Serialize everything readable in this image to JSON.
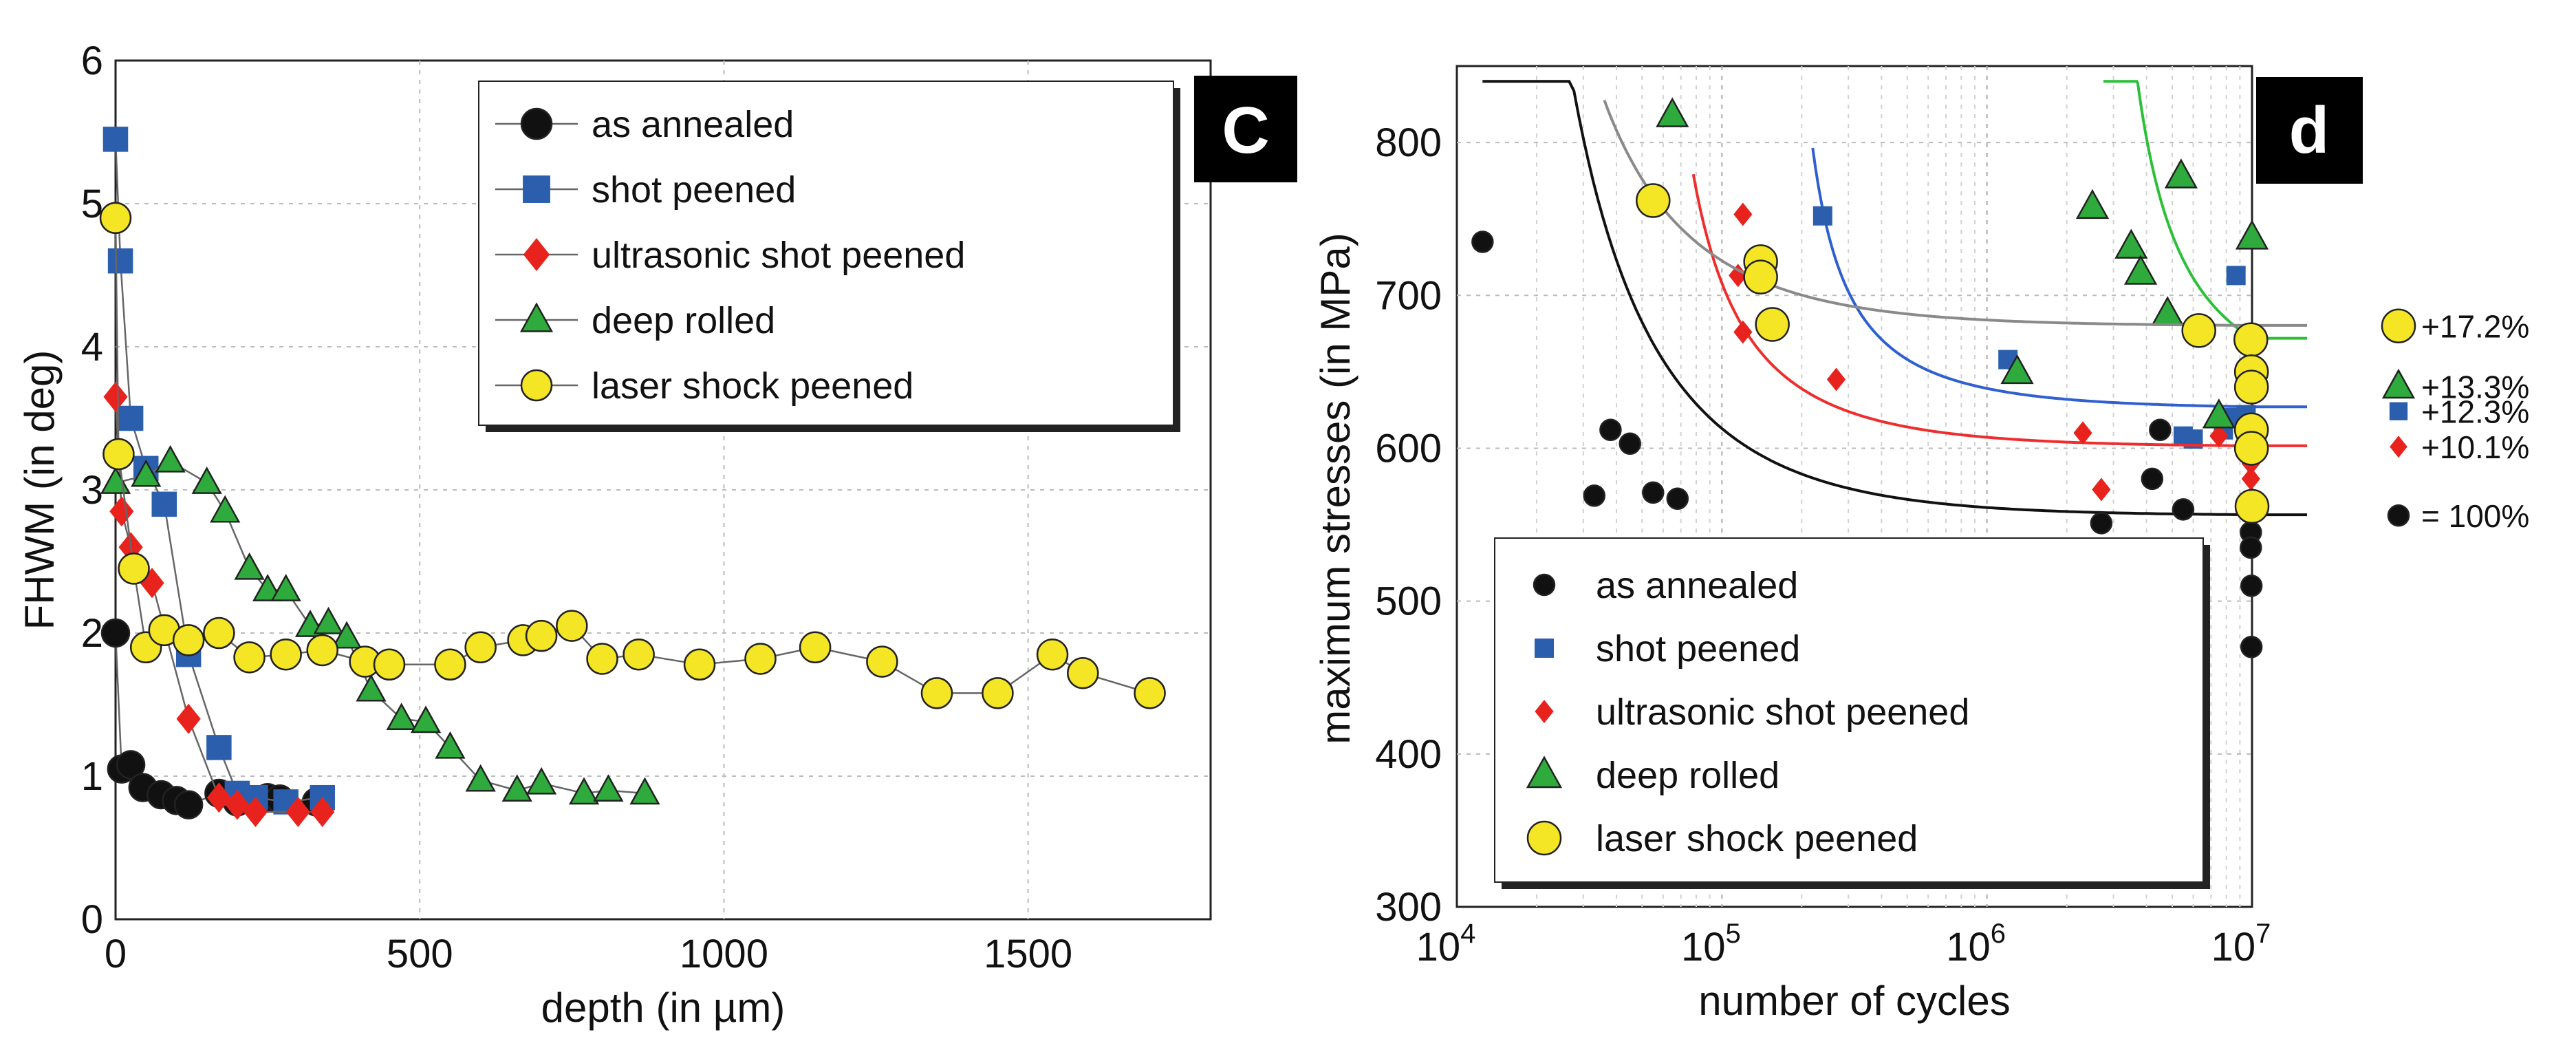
{
  "figure_title": "",
  "chart_data": [
    {
      "type": "line",
      "panel_label": "c",
      "title": "",
      "xlabel": "depth (in µm)",
      "ylabel": "FHWM (in deg)",
      "xlim": [
        0,
        1800
      ],
      "ylim": [
        0,
        6
      ],
      "xticks": [
        0,
        500,
        1000,
        1500
      ],
      "yticks": [
        0,
        1,
        2,
        3,
        4,
        5,
        6
      ],
      "grid": true,
      "legend_position": "top-right",
      "series": [
        {
          "name": "as annealed",
          "marker": "circle",
          "color": "#111111",
          "points": [
            [
              0,
              2.0
            ],
            [
              10,
              1.05
            ],
            [
              25,
              1.08
            ],
            [
              45,
              0.92
            ],
            [
              75,
              0.87
            ],
            [
              100,
              0.83
            ],
            [
              120,
              0.8
            ],
            [
              170,
              0.88
            ],
            [
              200,
              0.82
            ],
            [
              250,
              0.85
            ],
            [
              270,
              0.84
            ],
            [
              330,
              0.82
            ]
          ]
        },
        {
          "name": "shot peened",
          "marker": "square",
          "color": "#2b5fae",
          "points": [
            [
              0,
              5.45
            ],
            [
              8,
              4.6
            ],
            [
              25,
              3.5
            ],
            [
              50,
              3.15
            ],
            [
              80,
              2.9
            ],
            [
              120,
              1.85
            ],
            [
              170,
              1.2
            ],
            [
              200,
              0.88
            ],
            [
              230,
              0.85
            ],
            [
              280,
              0.82
            ],
            [
              340,
              0.85
            ]
          ]
        },
        {
          "name": "ultrasonic shot peened",
          "marker": "diamond",
          "color": "#e8231e",
          "points": [
            [
              0,
              3.65
            ],
            [
              10,
              2.85
            ],
            [
              25,
              2.6
            ],
            [
              60,
              2.35
            ],
            [
              120,
              1.4
            ],
            [
              170,
              0.85
            ],
            [
              200,
              0.8
            ],
            [
              230,
              0.75
            ],
            [
              300,
              0.75
            ],
            [
              340,
              0.75
            ]
          ]
        },
        {
          "name": "deep rolled",
          "marker": "triangle",
          "color": "#2eab3c",
          "points": [
            [
              0,
              3.05
            ],
            [
              50,
              3.1
            ],
            [
              90,
              3.2
            ],
            [
              150,
              3.05
            ],
            [
              180,
              2.85
            ],
            [
              220,
              2.45
            ],
            [
              250,
              2.3
            ],
            [
              280,
              2.3
            ],
            [
              320,
              2.05
            ],
            [
              350,
              2.07
            ],
            [
              380,
              1.97
            ],
            [
              420,
              1.6
            ],
            [
              470,
              1.4
            ],
            [
              510,
              1.38
            ],
            [
              550,
              1.2
            ],
            [
              600,
              0.97
            ],
            [
              660,
              0.9
            ],
            [
              700,
              0.95
            ],
            [
              770,
              0.88
            ],
            [
              810,
              0.9
            ],
            [
              870,
              0.88
            ]
          ]
        },
        {
          "name": "laser shock peened",
          "marker": "circle",
          "color": "#f4e525",
          "points": [
            [
              0,
              4.9
            ],
            [
              5,
              3.25
            ],
            [
              30,
              2.45
            ],
            [
              50,
              1.9
            ],
            [
              80,
              2.02
            ],
            [
              120,
              1.95
            ],
            [
              170,
              2.0
            ],
            [
              220,
              1.83
            ],
            [
              280,
              1.85
            ],
            [
              340,
              1.88
            ],
            [
              410,
              1.8
            ],
            [
              450,
              1.78
            ],
            [
              550,
              1.78
            ],
            [
              600,
              1.9
            ],
            [
              670,
              1.95
            ],
            [
              700,
              1.98
            ],
            [
              750,
              2.05
            ],
            [
              800,
              1.82
            ],
            [
              860,
              1.85
            ],
            [
              960,
              1.78
            ],
            [
              1060,
              1.82
            ],
            [
              1150,
              1.9
            ],
            [
              1260,
              1.8
            ],
            [
              1350,
              1.58
            ],
            [
              1450,
              1.58
            ],
            [
              1540,
              1.85
            ],
            [
              1590,
              1.72
            ],
            [
              1700,
              1.58
            ]
          ]
        }
      ]
    },
    {
      "type": "scatter",
      "panel_label": "d",
      "title": "",
      "xlabel": "number of cycles",
      "ylabel": "maximum stresses (in MPa)",
      "xscale": "log",
      "xlim": [
        10000,
        10000000
      ],
      "ylim": [
        300,
        850
      ],
      "xtick_labels": [
        {
          "base": "10",
          "exp": "4",
          "value": 10000
        },
        {
          "base": "10",
          "exp": "5",
          "value": 100000
        },
        {
          "base": "10",
          "exp": "6",
          "value": 1000000
        },
        {
          "base": "10",
          "exp": "7",
          "value": 10000000
        }
      ],
      "yticks": [
        300,
        400,
        500,
        600,
        700,
        800
      ],
      "grid": true,
      "legend_position": "bottom-left",
      "series": [
        {
          "name": "as annealed",
          "marker": "circle",
          "color": "#111111",
          "end_label": "= 100%",
          "fit": {
            "A": 556,
            "B": 5180000,
            "c": 9000,
            "nmin": 12500
          },
          "points": [
            [
              12500,
              735
            ],
            [
              33000,
              569
            ],
            [
              38000,
              612
            ],
            [
              45000,
              603
            ],
            [
              55000,
              571
            ],
            [
              68000,
              567
            ],
            [
              2700000,
              551
            ],
            [
              4200000,
              580
            ],
            [
              4500000,
              612
            ],
            [
              5500000,
              560
            ],
            [
              9800000,
              558
            ],
            [
              9900000,
              545
            ],
            [
              9900000,
              535
            ],
            [
              9950000,
              510
            ],
            [
              9950000,
              470
            ]
          ]
        },
        {
          "name": "shot peened",
          "marker": "square",
          "color": "#2b5fae",
          "end_label": "+12.3%",
          "fit": {
            "A": 626,
            "B": 11080000,
            "c": 155000,
            "nmin": 220000
          },
          "points": [
            [
              240000,
              752
            ],
            [
              1200000,
              658
            ],
            [
              5500000,
              608
            ],
            [
              6000000,
              606
            ],
            [
              7800000,
              612
            ],
            [
              8200000,
              620
            ],
            [
              8700000,
              713
            ],
            [
              9500000,
              622
            ]
          ]
        },
        {
          "name": "ultrasonic shot peened",
          "marker": "diamond",
          "color": "#e8231e",
          "end_label": "+10.1%",
          "fit": {
            "A": 601,
            "B": 5880000,
            "c": 45000,
            "nmin": 78000
          },
          "points": [
            [
              115000,
              713
            ],
            [
              120000,
              753
            ],
            [
              120000,
              676
            ],
            [
              270000,
              645
            ],
            [
              2300000,
              610
            ],
            [
              2700000,
              573
            ],
            [
              7500000,
              608
            ],
            [
              9800000,
              600
            ],
            [
              9900000,
              590
            ],
            [
              9900000,
              580
            ]
          ]
        },
        {
          "name": "deep rolled",
          "marker": "triangle",
          "color": "#2eab3c",
          "end_label": "+13.3%",
          "fit": {
            "A": 636,
            "B": 275000000,
            "c": 2350000,
            "nmin": 2750000
          },
          "points": [
            [
              65000,
              818
            ],
            [
              1300000,
              650
            ],
            [
              2500000,
              758
            ],
            [
              3500000,
              732
            ],
            [
              3800000,
              715
            ],
            [
              4800000,
              688
            ],
            [
              5400000,
              778
            ],
            [
              7500000,
              621
            ],
            [
              10000000,
              738
            ]
          ]
        },
        {
          "name": "laser shock peened",
          "marker": "circle",
          "color": "#f4e525",
          "end_label": "+17.2%",
          "fit": {
            "A": 680,
            "B": 3840000,
            "c": 10000,
            "nmin": 36000
          },
          "points": [
            [
              55000,
              762
            ],
            [
              140000,
              722
            ],
            [
              140000,
              712
            ],
            [
              155000,
              681
            ],
            [
              6300000,
              677
            ],
            [
              9900000,
              671
            ],
            [
              9950000,
              650
            ],
            [
              9950000,
              640
            ],
            [
              9950000,
              612
            ],
            [
              9950000,
              600
            ],
            [
              10000000,
              562
            ]
          ]
        }
      ]
    }
  ]
}
